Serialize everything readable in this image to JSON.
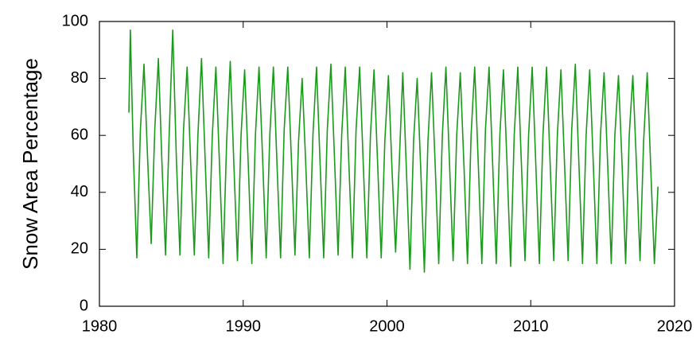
{
  "chart_data": {
    "type": "line",
    "ylabel": "Snow Area Percentage",
    "xlim": [
      1980,
      2020
    ],
    "xticks": [
      1980,
      1990,
      2000,
      2010,
      2020
    ],
    "ylim": [
      0,
      100
    ],
    "yticks": [
      0,
      20,
      40,
      60,
      80,
      100
    ],
    "grid": false,
    "series": [
      {
        "name": "Snow Area Percentage",
        "color": "#1a9a1a",
        "x": [
          1982.05,
          1982.15,
          1982.35,
          1982.6,
          1982.85,
          1983.1,
          1983.35,
          1983.6,
          1983.85,
          1984.1,
          1984.35,
          1984.6,
          1984.85,
          1985.1,
          1985.35,
          1985.6,
          1985.85,
          1986.1,
          1986.35,
          1986.6,
          1986.85,
          1987.1,
          1987.35,
          1987.6,
          1987.85,
          1988.1,
          1988.35,
          1988.6,
          1988.85,
          1989.1,
          1989.35,
          1989.6,
          1989.85,
          1990.1,
          1990.35,
          1990.6,
          1990.85,
          1991.1,
          1991.35,
          1991.6,
          1991.85,
          1992.1,
          1992.35,
          1992.6,
          1992.85,
          1993.1,
          1993.35,
          1993.6,
          1993.85,
          1994.1,
          1994.35,
          1994.6,
          1994.85,
          1995.1,
          1995.35,
          1995.6,
          1995.85,
          1996.1,
          1996.35,
          1996.6,
          1996.85,
          1997.1,
          1997.35,
          1997.6,
          1997.85,
          1998.1,
          1998.35,
          1998.6,
          1998.85,
          1999.1,
          1999.35,
          1999.6,
          1999.85,
          2000.1,
          2000.35,
          2000.6,
          2000.85,
          2001.1,
          2001.35,
          2001.6,
          2001.85,
          2002.1,
          2002.35,
          2002.6,
          2002.85,
          2003.1,
          2003.35,
          2003.6,
          2003.85,
          2004.1,
          2004.35,
          2004.6,
          2004.85,
          2005.1,
          2005.35,
          2005.6,
          2005.85,
          2006.1,
          2006.35,
          2006.6,
          2006.85,
          2007.1,
          2007.35,
          2007.6,
          2007.85,
          2008.1,
          2008.35,
          2008.6,
          2008.85,
          2009.1,
          2009.35,
          2009.6,
          2009.85,
          2010.1,
          2010.35,
          2010.6,
          2010.85,
          2011.1,
          2011.35,
          2011.6,
          2011.85,
          2012.1,
          2012.35,
          2012.6,
          2012.85,
          2013.1,
          2013.35,
          2013.6,
          2013.85,
          2014.1,
          2014.35,
          2014.6,
          2014.85,
          2015.1,
          2015.35,
          2015.6,
          2015.85,
          2016.1,
          2016.35,
          2016.6,
          2016.85,
          2017.1,
          2017.35,
          2017.6,
          2017.85,
          2018.1,
          2018.35,
          2018.6,
          2018.85
        ],
        "values": [
          68,
          97,
          55,
          17,
          62,
          85,
          52,
          22,
          62,
          87,
          50,
          18,
          60,
          97,
          52,
          18,
          62,
          84,
          50,
          18,
          60,
          87,
          52,
          17,
          60,
          84,
          50,
          15,
          58,
          86,
          50,
          16,
          60,
          83,
          50,
          15,
          60,
          84,
          52,
          17,
          60,
          84,
          50,
          17,
          62,
          84,
          52,
          18,
          58,
          80,
          50,
          17,
          60,
          84,
          50,
          17,
          62,
          85,
          52,
          18,
          60,
          84,
          50,
          17,
          62,
          84,
          50,
          17,
          60,
          83,
          50,
          17,
          58,
          81,
          48,
          19,
          50,
          82,
          48,
          13,
          58,
          80,
          48,
          12,
          58,
          82,
          50,
          15,
          60,
          84,
          50,
          16,
          60,
          82,
          50,
          15,
          60,
          84,
          50,
          15,
          62,
          84,
          50,
          15,
          60,
          83,
          50,
          14,
          60,
          84,
          50,
          16,
          60,
          84,
          50,
          15,
          60,
          84,
          50,
          16,
          60,
          83,
          50,
          16,
          62,
          85,
          50,
          15,
          60,
          83,
          50,
          15,
          60,
          82,
          50,
          15,
          60,
          81,
          50,
          15,
          60,
          81,
          50,
          16,
          58,
          82,
          48,
          15,
          42
        ]
      }
    ]
  }
}
